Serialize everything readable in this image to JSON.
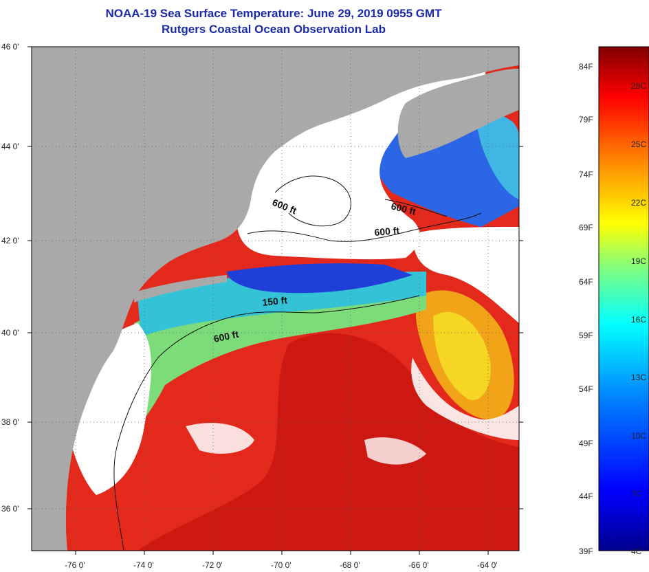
{
  "title": "NOAA-19 Sea Surface Temperature:  June 29, 2019 0955 GMT",
  "subtitle": "Rutgers Coastal Ocean Observation Lab",
  "map": {
    "lat_labels": [
      "46 0'",
      "44 0'",
      "42 0'",
      "40 0'",
      "38 0'",
      "36 0'"
    ],
    "lon_labels": [
      "-76 0'",
      "-74 0'",
      "-72 0'",
      "-70 0'",
      "-68 0'",
      "-66 0'",
      "-64 0'"
    ],
    "depth_labels": [
      "600 ft",
      "600 ft",
      "600 ft",
      "150 ft",
      "600 ft"
    ],
    "colors": {
      "land": "#a9a9a9",
      "cloud": "#ffffff",
      "warm": "#e8271a",
      "hot": "#c8100e",
      "cool": "#2a55e0",
      "cyan": "#33c8d8",
      "yellow": "#f4d020"
    }
  },
  "colorbar": {
    "fahrenheit": [
      "84F",
      "79F",
      "74F",
      "69F",
      "64F",
      "59F",
      "54F",
      "49F",
      "44F",
      "39F"
    ],
    "celsius": [
      "28C",
      "25C",
      "22C",
      "19C",
      "16C",
      "13C",
      "10C",
      "7C",
      "4C"
    ],
    "range_f": [
      39,
      86
    ],
    "colors": [
      "#00008f",
      "#0000ff",
      "#0080ff",
      "#00ffff",
      "#80ff80",
      "#ffff00",
      "#ff8000",
      "#ff0000",
      "#800000"
    ]
  }
}
